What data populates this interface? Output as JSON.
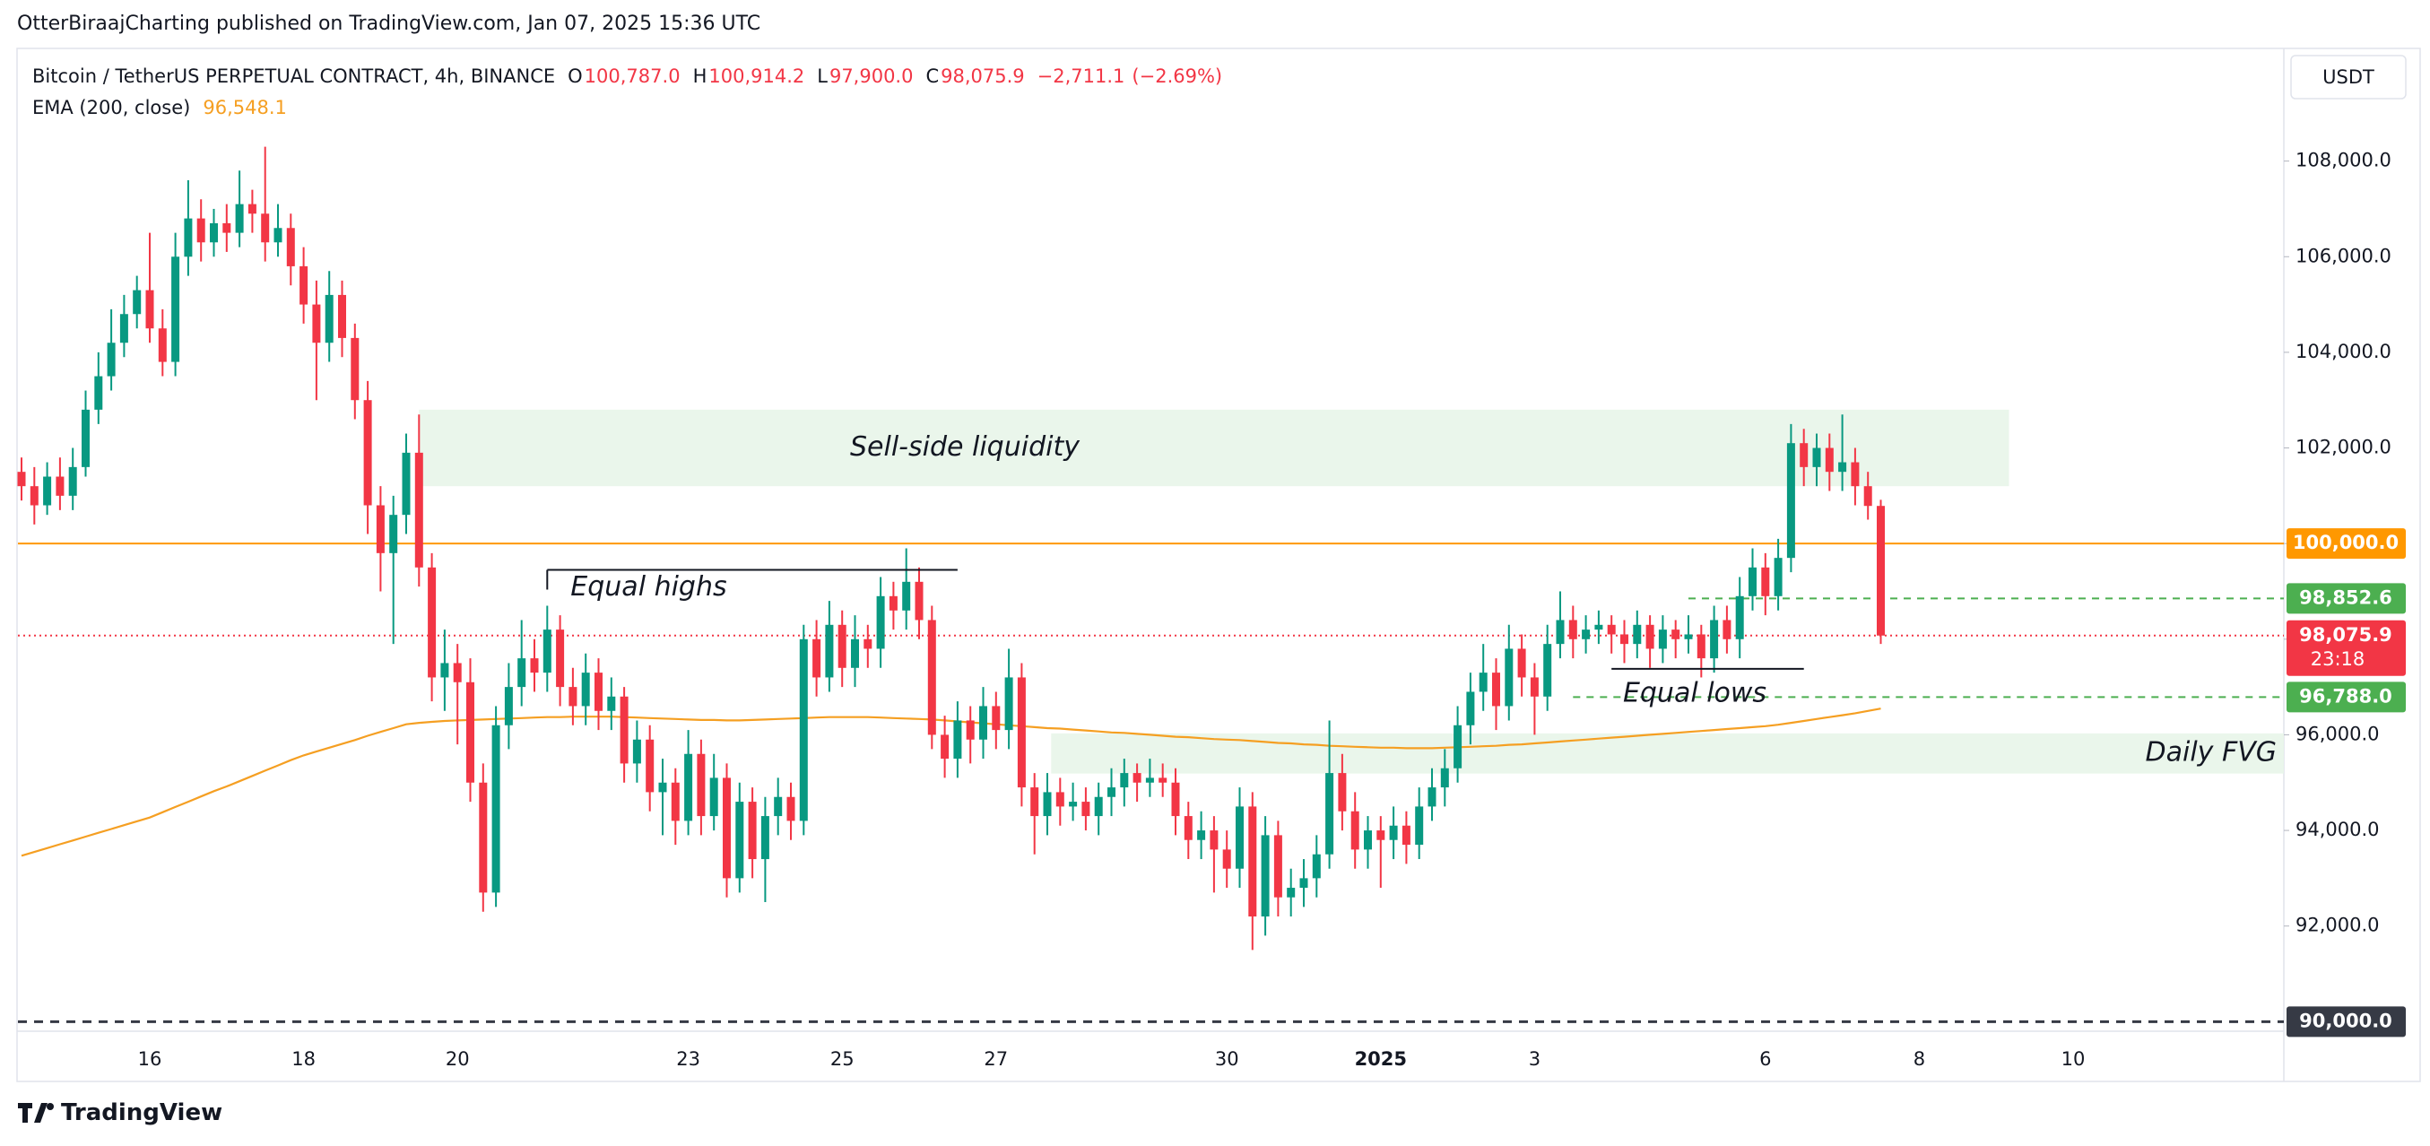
{
  "header": {
    "text": "OtterBiraajCharting published on TradingView.com, Jan 07, 2025 15:36 UTC"
  },
  "footer": {
    "brand": "TradingView"
  },
  "chart_data": {
    "type": "candlestick",
    "title": "Bitcoin / TetherUS PERPETUAL CONTRACT, 4h, BINANCE",
    "currency": "USDT",
    "ohlc_legend": [
      {
        "key": "O",
        "value": {
          "value": 100787.0,
          "label": "100,787.0"
        }
      },
      {
        "key": "H",
        "value": {
          "value": 100914.2,
          "label": "100,914.2"
        }
      },
      {
        "key": "L",
        "value": {
          "value": 97900.0,
          "label": "97,900.0"
        }
      },
      {
        "key": "C",
        "value": {
          "value": 98075.9,
          "label": "98,075.9"
        }
      }
    ],
    "change": {
      "value": -2711.1,
      "label": "−2,711.1"
    },
    "change_pct": {
      "value": -2.69,
      "label": "(−2.69%)"
    },
    "up_color": "#089981",
    "down_color": "#f23645",
    "grid": false,
    "x_labels": [
      "16",
      "18",
      "20",
      "23",
      "25",
      "27",
      "30",
      "2025",
      "3",
      "6",
      "8",
      "10"
    ],
    "ylim": [
      89800,
      110300
    ],
    "yticks": [
      {
        "value": 92000,
        "label": "92,000.0"
      },
      {
        "value": 94000,
        "label": "94,000.0"
      },
      {
        "value": 96000,
        "label": "96,000.0"
      },
      {
        "value": 98000,
        "label": "98,000.0"
      },
      {
        "value": 100000,
        "label": "100,000.0"
      },
      {
        "value": 102000,
        "label": "102,000.0"
      },
      {
        "value": 104000,
        "label": "104,000.0"
      },
      {
        "value": 106000,
        "label": "106,000.0"
      },
      {
        "value": 108000,
        "label": "108,000.0"
      }
    ],
    "candles": {
      "open": [
        101500,
        101200,
        100800,
        101400,
        101000,
        101600,
        102800,
        103500,
        104200,
        104800,
        105300,
        104500,
        103800,
        106000,
        106800,
        106300,
        106700,
        106500,
        107100,
        106900,
        106300,
        106600,
        105800,
        105000,
        104200,
        105200,
        104300,
        103000,
        100800,
        99800,
        100600,
        101900,
        99500,
        97200,
        97500,
        97100,
        95000,
        92700,
        96200,
        97000,
        97600,
        97300,
        98200,
        97000,
        96600,
        97300,
        96500,
        96800,
        95400,
        95900,
        94800,
        95000,
        94200,
        95600,
        94300,
        95100,
        93000,
        94600,
        93400,
        94300,
        94700,
        94200,
        98000,
        97200,
        98300,
        97400,
        98000,
        97800,
        98900,
        98600,
        99200,
        98400,
        96000,
        95500,
        96300,
        95900,
        96600,
        96100,
        97200,
        94900,
        94300,
        94800,
        94500,
        94600,
        94300,
        94700,
        94900,
        95200,
        95000,
        95100,
        95000,
        94300,
        93800,
        94000,
        93600,
        93200,
        94500,
        92200,
        93900,
        92600,
        92800,
        93000,
        93500,
        95200,
        94400,
        93600,
        94000,
        93800,
        94100,
        93700,
        94500,
        94900,
        95300,
        96200,
        96900,
        97300,
        96600,
        97800,
        97200,
        96800,
        97900,
        98400,
        98000,
        98200,
        98300,
        98100,
        97900,
        98300,
        97800,
        98200,
        98000,
        98100,
        97600,
        98400,
        98000,
        98900,
        99500,
        98900,
        99700,
        102100,
        101600,
        102000,
        101500,
        101700,
        101200,
        100787
      ],
      "high": [
        101800,
        101600,
        101700,
        101800,
        102000,
        103200,
        104000,
        104900,
        105200,
        105600,
        106500,
        104900,
        106500,
        107600,
        107200,
        107000,
        107100,
        107800,
        107400,
        108300,
        107100,
        106900,
        106200,
        105500,
        105700,
        105500,
        104600,
        103400,
        101200,
        101000,
        102300,
        102700,
        99800,
        98200,
        97900,
        97600,
        95400,
        96600,
        97500,
        98400,
        98000,
        98700,
        98500,
        97400,
        97700,
        97600,
        97200,
        97000,
        96300,
        96200,
        95500,
        95300,
        96100,
        95900,
        95600,
        95400,
        95000,
        94900,
        94700,
        95100,
        95000,
        98300,
        98400,
        98800,
        98600,
        98500,
        98300,
        99300,
        99200,
        99900,
        99500,
        98700,
        96400,
        96700,
        96600,
        97000,
        96900,
        97800,
        97500,
        95200,
        95200,
        95100,
        95000,
        94900,
        95000,
        95300,
        95500,
        95400,
        95500,
        95400,
        95300,
        94600,
        94400,
        94300,
        94000,
        94900,
        94800,
        94300,
        94200,
        93200,
        93400,
        93900,
        96300,
        95600,
        94800,
        94300,
        94300,
        94500,
        94400,
        94900,
        95300,
        95700,
        96600,
        97300,
        97900,
        97600,
        98300,
        98100,
        97500,
        98300,
        99000,
        98700,
        98500,
        98600,
        98500,
        98400,
        98600,
        98500,
        98500,
        98400,
        98500,
        98300,
        98700,
        98700,
        99300,
        99900,
        99800,
        100100,
        102500,
        102400,
        102300,
        102300,
        102700,
        102000,
        101500,
        100914.2
      ],
      "low": [
        100900,
        100400,
        100600,
        100700,
        100700,
        101400,
        102500,
        103200,
        103900,
        104500,
        104200,
        103500,
        103500,
        105600,
        105900,
        106000,
        106100,
        106200,
        106500,
        105900,
        106000,
        105400,
        104600,
        103000,
        103800,
        103900,
        102600,
        100200,
        99000,
        97900,
        100200,
        99100,
        96700,
        96500,
        95800,
        94600,
        92300,
        92400,
        95700,
        96600,
        96900,
        96900,
        96600,
        96200,
        96200,
        96100,
        96100,
        95000,
        95000,
        94400,
        93900,
        93700,
        93900,
        93900,
        94000,
        92600,
        92700,
        93000,
        92500,
        93900,
        93800,
        93900,
        96800,
        96900,
        97000,
        97000,
        97400,
        97400,
        98200,
        98200,
        98000,
        95700,
        95100,
        95100,
        95400,
        95500,
        95700,
        95700,
        94500,
        93500,
        93900,
        94100,
        94200,
        94000,
        93900,
        94300,
        94500,
        94600,
        94700,
        94700,
        93900,
        93400,
        93400,
        92700,
        92800,
        92800,
        91500,
        91800,
        92200,
        92200,
        92400,
        92600,
        93200,
        94000,
        93200,
        93200,
        92800,
        93400,
        93300,
        93400,
        94200,
        94500,
        95000,
        95800,
        96500,
        96100,
        96300,
        96800,
        96000,
        96500,
        97600,
        97600,
        97700,
        97900,
        97700,
        97500,
        97600,
        97400,
        97500,
        97600,
        97700,
        97200,
        97300,
        97700,
        97600,
        98600,
        98500,
        98600,
        99400,
        101200,
        101200,
        101100,
        101100,
        100800,
        100500,
        97900
      ],
      "close": [
        101200,
        100800,
        101400,
        101000,
        101600,
        102800,
        103500,
        104200,
        104800,
        105300,
        104500,
        103800,
        106000,
        106800,
        106300,
        106700,
        106500,
        107100,
        106900,
        106300,
        106600,
        105800,
        105000,
        104200,
        105200,
        104300,
        103000,
        100800,
        99800,
        100600,
        101900,
        99500,
        97200,
        97500,
        97100,
        95000,
        92700,
        96200,
        97000,
        97600,
        97300,
        98200,
        97000,
        96600,
        97300,
        96500,
        96800,
        95400,
        95900,
        94800,
        95000,
        94200,
        95600,
        94300,
        95100,
        93000,
        94600,
        93400,
        94300,
        94700,
        94200,
        98000,
        97200,
        98300,
        97400,
        98000,
        97800,
        98900,
        98600,
        99200,
        98400,
        96000,
        95500,
        96300,
        95900,
        96600,
        96100,
        97200,
        94900,
        94300,
        94800,
        94500,
        94600,
        94300,
        94700,
        94900,
        95200,
        95000,
        95100,
        95000,
        94300,
        93800,
        94000,
        93600,
        93200,
        94500,
        92200,
        93900,
        92600,
        92800,
        93000,
        93500,
        95200,
        94400,
        93600,
        94000,
        93800,
        94100,
        93700,
        94500,
        94900,
        95300,
        96200,
        96900,
        97300,
        96600,
        97800,
        97200,
        96800,
        97900,
        98400,
        98000,
        98200,
        98300,
        98100,
        97900,
        98300,
        97800,
        98200,
        98000,
        98100,
        97600,
        98400,
        98000,
        98900,
        99500,
        98900,
        99700,
        102100,
        101600,
        102000,
        101500,
        101700,
        101200,
        100787,
        98075.9
      ]
    },
    "ema": {
      "name": "EMA (200, close)",
      "color": "#f59f22",
      "last": {
        "value": 96548.1,
        "label": "96,548.1"
      },
      "values": [
        93470,
        93550,
        93630,
        93710,
        93790,
        93870,
        93950,
        94030,
        94110,
        94190,
        94270,
        94380,
        94490,
        94600,
        94710,
        94820,
        94920,
        95030,
        95140,
        95250,
        95360,
        95470,
        95570,
        95650,
        95730,
        95810,
        95890,
        95980,
        96060,
        96140,
        96220,
        96250,
        96270,
        96290,
        96300,
        96310,
        96320,
        96330,
        96340,
        96350,
        96360,
        96370,
        96370,
        96380,
        96380,
        96380,
        96380,
        96370,
        96360,
        96350,
        96340,
        96330,
        96320,
        96310,
        96310,
        96300,
        96300,
        96310,
        96320,
        96330,
        96340,
        96350,
        96360,
        96370,
        96370,
        96370,
        96370,
        96360,
        96350,
        96340,
        96330,
        96320,
        96300,
        96280,
        96260,
        96240,
        96220,
        96200,
        96180,
        96160,
        96140,
        96130,
        96110,
        96090,
        96070,
        96050,
        96040,
        96020,
        96000,
        95980,
        95960,
        95950,
        95930,
        95910,
        95900,
        95890,
        95870,
        95850,
        95830,
        95820,
        95800,
        95790,
        95770,
        95760,
        95750,
        95740,
        95730,
        95730,
        95720,
        95720,
        95720,
        95730,
        95740,
        95750,
        95760,
        95770,
        95790,
        95800,
        95820,
        95840,
        95860,
        95880,
        95900,
        95920,
        95940,
        95960,
        95980,
        96000,
        96020,
        96040,
        96060,
        96080,
        96100,
        96120,
        96140,
        96160,
        96180,
        96210,
        96250,
        96290,
        96330,
        96370,
        96410,
        96450,
        96500,
        96548
      ]
    },
    "levels": [
      {
        "value": 100000,
        "label": "100,000.0",
        "color": "#ff9800",
        "style": "solid"
      },
      {
        "value": 98852.6,
        "label": "98,852.6",
        "color": "#4caf50",
        "style": "dashed"
      },
      {
        "value": 96788.0,
        "label": "96,788.0",
        "color": "#4caf50",
        "style": "dashed"
      },
      {
        "value": 90000,
        "label": "90,000.0",
        "color": "#363a45",
        "style": "dashed"
      }
    ],
    "last_price": {
      "value": 98075.9,
      "label": "98,075.9",
      "countdown": "23:18",
      "color": "#f23645"
    },
    "zones": [
      {
        "label": "Sell-side liquidity",
        "top": 102800,
        "bottom": 101200
      },
      {
        "label": "Daily FVG",
        "top": 96030,
        "bottom": 95190
      }
    ],
    "marker_lines": [
      {
        "label": "Equal highs",
        "value": 99450
      },
      {
        "label": "Equal lows",
        "value": 97380
      }
    ]
  }
}
